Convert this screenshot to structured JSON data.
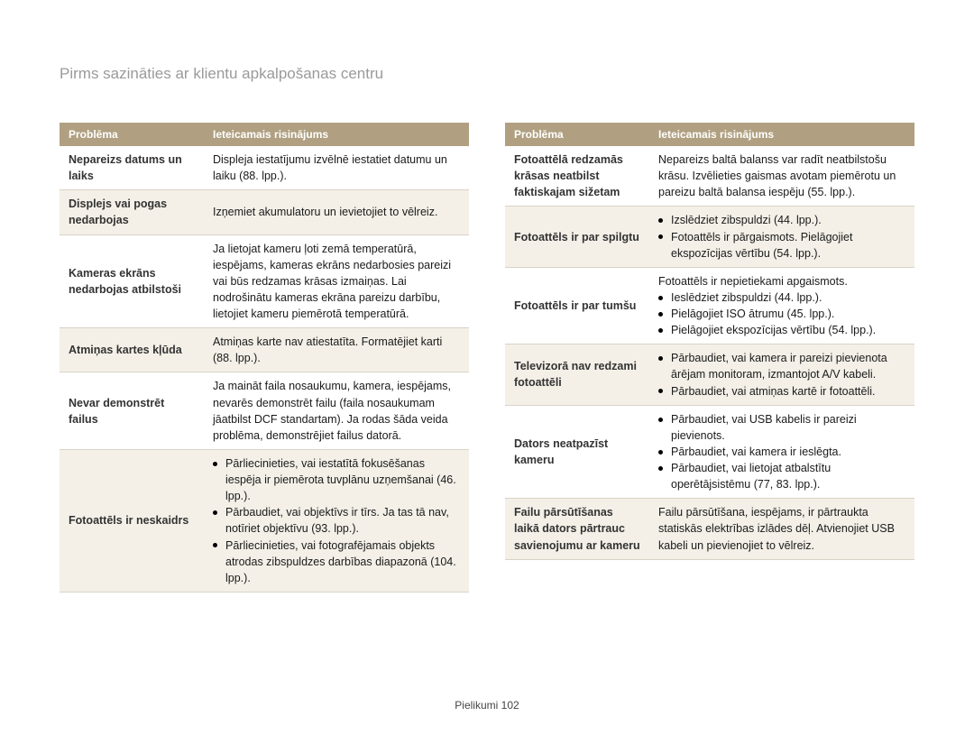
{
  "title": "Pirms sazināties ar klientu apkalpošanas centru",
  "header": {
    "problem": "Problēma",
    "solution": "Ieteicamais risinājums"
  },
  "left": [
    {
      "p": "Nepareizs datums un laiks",
      "s": "Displeja iestatījumu izvēlnē iestatiet datumu un laiku (88. lpp.)."
    },
    {
      "p": "Displejs vai pogas nedarbojas",
      "s": "Izņemiet akumulatoru un ievietojiet to vēlreiz."
    },
    {
      "p": "Kameras ekrāns nedarbojas atbilstoši",
      "s": "Ja lietojat kameru ļoti zemā temperatūrā, iespējams, kameras ekrāns nedarbosies pareizi vai būs redzamas krāsas izmaiņas. Lai nodrošinātu kameras ekrāna pareizu darbību, lietojiet kameru piemērotā temperatūrā."
    },
    {
      "p": "Atmiņas kartes kļūda",
      "s": "Atmiņas karte nav atiestatīta. Formatējiet karti (88. lpp.)."
    },
    {
      "p": "Nevar demonstrēt failus",
      "s": "Ja maināt faila nosaukumu, kamera, iespējams, nevarēs demonstrēt failu (faila nosaukumam jāatbilst DCF standartam). Ja rodas šāda veida problēma, demonstrējiet failus datorā."
    },
    {
      "p": "Fotoattēls ir neskaidrs",
      "list": [
        "Pārliecinieties, vai iestatītā fokusēšanas iespēja ir piemērota tuvplānu uzņemšanai (46. lpp.).",
        "Pārbaudiet, vai objektīvs ir tīrs. Ja tas tā nav, notīriet objektīvu (93. lpp.).",
        "Pārliecinieties, vai fotografējamais objekts atrodas zibspuldzes darbības diapazonā (104. lpp.)."
      ]
    }
  ],
  "right": [
    {
      "p": "Fotoattēlā redzamās krāsas neatbilst faktiskajam sižetam",
      "s": "Nepareizs baltā balanss var radīt neatbilstošu krāsu. Izvēlieties gaismas avotam piemērotu un pareizu baltā balansa iespēju (55. lpp.)."
    },
    {
      "p": "Fotoattēls ir par spilgtu",
      "list": [
        "Izslēdziet zibspuldzi (44. lpp.).",
        "Fotoattēls ir pārgaismots. Pielāgojiet ekspozīcijas vērtību (54. lpp.)."
      ]
    },
    {
      "p": "Fotoattēls ir par tumšu",
      "pre": "Fotoattēls ir nepietiekami apgaismots.",
      "list": [
        "Ieslēdziet zibspuldzi (44. lpp.).",
        "Pielāgojiet ISO ātrumu (45. lpp.).",
        "Pielāgojiet ekspozīcijas vērtību (54. lpp.)."
      ]
    },
    {
      "p": "Televizorā nav redzami fotoattēli",
      "list": [
        "Pārbaudiet, vai kamera ir pareizi pievienota ārējam monitoram, izmantojot A/V kabeli.",
        "Pārbaudiet, vai atmiņas kartē ir fotoattēli."
      ]
    },
    {
      "p": "Dators neatpazīst kameru",
      "list": [
        "Pārbaudiet, vai USB kabelis ir pareizi pievienots.",
        "Pārbaudiet, vai kamera ir ieslēgta.",
        "Pārbaudiet, vai lietojat atbalstītu operētājsistēmu (77, 83. lpp.)."
      ]
    },
    {
      "p": "Failu pārsūtīšanas laikā dators pārtrauc savienojumu ar kameru",
      "s": "Failu pārsūtīšana, iespējams, ir pārtraukta statiskās elektrības izlādes dēļ. Atvienojiet USB kabeli un pievienojiet to vēlreiz."
    }
  ],
  "footer": {
    "section": "Pielikumi",
    "page": "102"
  }
}
